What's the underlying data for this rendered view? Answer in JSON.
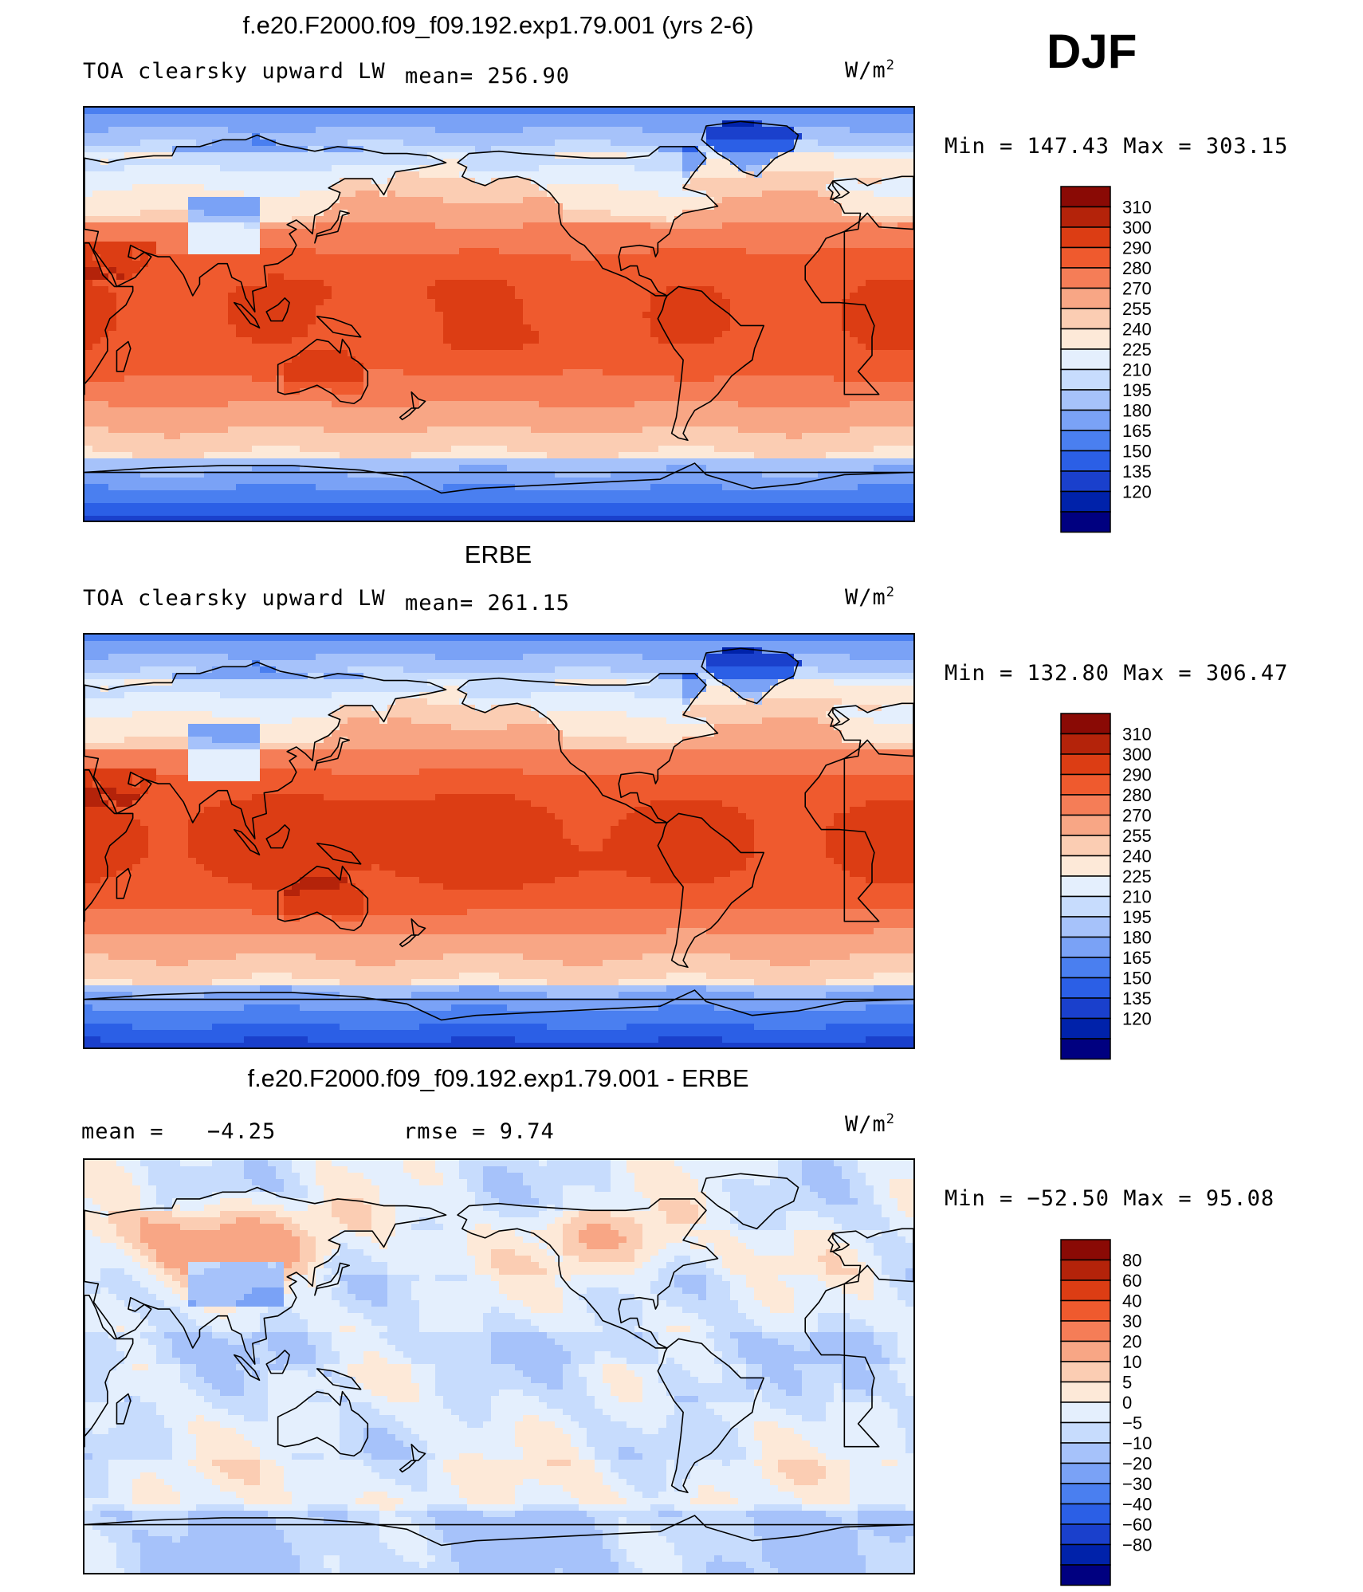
{
  "season": "DJF",
  "colors": {
    "abs": [
      "#000080",
      "#0022aa",
      "#1a40cc",
      "#2b5fe6",
      "#4a7ff0",
      "#7aa2f6",
      "#a6c2fa",
      "#c7dcfd",
      "#e4effd",
      "#fde9d8",
      "#fbcdb3",
      "#f8a685",
      "#f57d57",
      "#ef5a2e",
      "#dc3d14",
      "#b4230a",
      "#8a0a05"
    ],
    "diff": [
      "#000080",
      "#0022aa",
      "#1a40cc",
      "#2b5fe6",
      "#4a7ff0",
      "#7aa2f6",
      "#a6c2fa",
      "#c7dcfd",
      "#e4effd",
      "#fde9d8",
      "#fbcdb3",
      "#f8a685",
      "#f57d57",
      "#ef5a2e",
      "#dc3d14",
      "#b4230a",
      "#8a0a05"
    ]
  },
  "panels": [
    {
      "title": "f.e20.F2000.f09_f09.192.exp1.79.001 (yrs 2-6)",
      "left_label": "TOA clearsky upward LW",
      "stat1": "mean= 256.90",
      "stat2": "",
      "unit": "W/m",
      "unit_sup": "2",
      "minmax": "Min = 147.43 Max = 303.15",
      "colorbar_labels": [
        "310",
        "300",
        "290",
        "280",
        "270",
        "255",
        "240",
        "225",
        "210",
        "195",
        "180",
        "165",
        "150",
        "135",
        "120"
      ],
      "field": "model"
    },
    {
      "title": "ERBE",
      "left_label": "TOA clearsky upward LW",
      "stat1": "mean= 261.15",
      "stat2": "",
      "unit": "W/m",
      "unit_sup": "2",
      "minmax": "Min = 132.80 Max = 306.47",
      "colorbar_labels": [
        "310",
        "300",
        "290",
        "280",
        "270",
        "255",
        "240",
        "225",
        "210",
        "195",
        "180",
        "165",
        "150",
        "135",
        "120"
      ],
      "field": "obs"
    },
    {
      "title": "f.e20.F2000.f09_f09.192.exp1.79.001 - ERBE",
      "left_label": "mean =",
      "stat1": "−4.25",
      "stat2": "rmse =     9.74",
      "unit": "W/m",
      "unit_sup": "2",
      "minmax": "Min = −52.50 Max =  95.08",
      "colorbar_labels": [
        "80",
        "60",
        "40",
        "30",
        "20",
        "10",
        "5",
        "0",
        "−5",
        "−10",
        "−20",
        "−30",
        "−40",
        "−60",
        "−80"
      ],
      "field": "diff"
    }
  ]
}
